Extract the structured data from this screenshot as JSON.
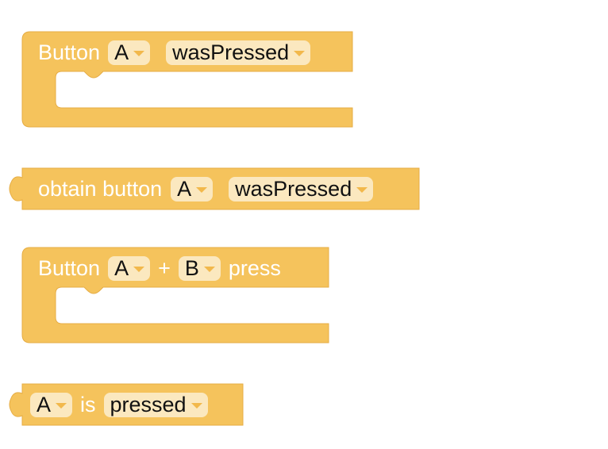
{
  "colors": {
    "block_fill": "#f5c35c",
    "block_stroke": "#e6ad45",
    "field_fill": "#fbe8bf",
    "dropdown_arrow": "#f2b84b"
  },
  "blocks": [
    {
      "label": "Button",
      "button_value": "A",
      "event_value": "wasPressed"
    },
    {
      "label": "obtain button",
      "button_value": "A",
      "event_value": "wasPressed"
    },
    {
      "label": "Button",
      "button_a_value": "A",
      "plus": "+",
      "button_b_value": "B",
      "trailing": "press"
    },
    {
      "button_value": "A",
      "connector": "is",
      "state_value": "pressed"
    }
  ]
}
